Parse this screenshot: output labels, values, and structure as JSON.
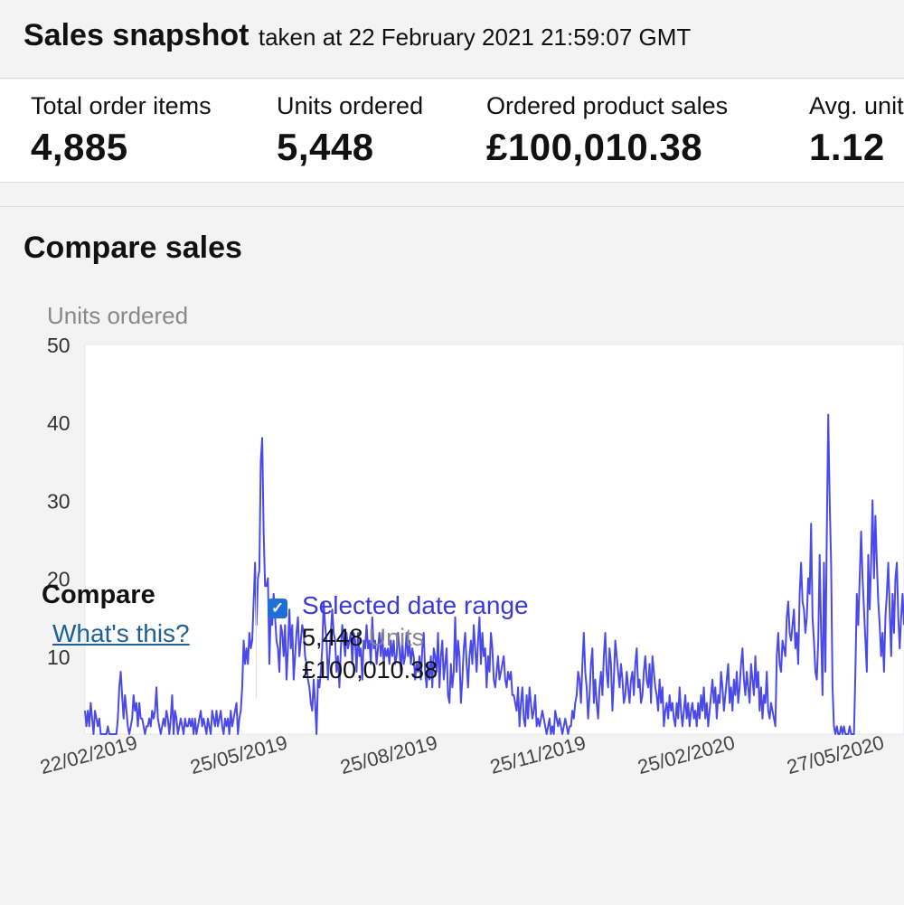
{
  "header": {
    "title": "Sales snapshot",
    "subtitle": "taken at 22 February 2021 21:59:07 GMT"
  },
  "metrics": [
    {
      "label": "Total order items",
      "value": "4,885"
    },
    {
      "label": "Units ordered",
      "value": "5,448"
    },
    {
      "label": "Ordered product sales",
      "value": "£100,010.38"
    },
    {
      "label": "Avg. units/order item",
      "value": "1.12"
    }
  ],
  "compare_sales": {
    "title": "Compare sales",
    "compare_label": "Compare",
    "whats_this": "What's this?",
    "range": {
      "label": "Selected date range",
      "checked": true,
      "units_value": "5,448",
      "units_label": "Units",
      "sales": "£100,010.38"
    }
  },
  "colors": {
    "line": "#4a4aea",
    "link": "#1f5f95",
    "checkbox": "#1e6fd6"
  },
  "chart_data": {
    "type": "line",
    "ylabel": "Units ordered",
    "ylim": [
      0,
      50
    ],
    "yticks": [
      "50",
      "40",
      "30",
      "20",
      "10"
    ],
    "xtick_labels": [
      "22/02/2019",
      "25/05/2019",
      "25/08/2019",
      "25/11/2019",
      "25/02/2020",
      "27/05/2020"
    ],
    "series": [
      {
        "values": [
          3,
          1,
          3,
          1,
          4,
          2,
          0,
          3,
          2,
          1,
          2,
          0,
          0,
          0,
          0,
          0,
          1,
          0,
          0,
          0,
          0,
          0,
          0,
          2,
          6,
          8,
          5,
          2,
          5,
          3,
          1,
          0,
          1,
          2,
          5,
          3,
          4,
          1,
          4,
          2,
          2,
          1,
          0,
          1,
          1,
          2,
          1,
          3,
          2,
          3,
          6,
          2,
          1,
          0,
          1,
          2,
          1,
          3,
          2,
          0,
          2,
          5,
          0,
          3,
          2,
          0,
          1,
          2,
          1,
          0,
          2,
          1,
          1,
          2,
          1,
          2,
          0,
          2,
          0,
          1,
          2,
          3,
          1,
          2,
          1,
          0,
          2,
          1,
          0,
          3,
          2,
          1,
          3,
          1,
          2,
          3,
          1,
          0,
          2,
          1,
          2,
          0,
          3,
          1,
          2,
          3,
          4,
          0,
          2,
          3,
          6,
          12,
          9,
          11,
          9,
          13,
          11,
          12,
          17,
          22,
          14,
          20,
          21,
          35,
          38,
          26,
          19,
          19,
          20,
          9,
          16,
          14,
          18,
          15,
          12,
          11,
          8,
          14,
          13,
          10,
          14,
          7,
          11,
          16,
          11,
          14,
          7,
          10,
          13,
          15,
          10,
          12,
          14,
          13,
          10,
          9,
          7,
          6,
          4,
          3,
          7,
          4,
          0,
          7,
          6,
          8,
          11,
          17,
          14,
          12,
          7,
          10,
          13,
          16,
          13,
          12,
          8,
          10,
          6,
          11,
          14,
          12,
          10,
          13,
          11,
          12,
          13,
          9,
          13,
          12,
          8,
          13,
          10,
          11,
          7,
          12,
          11,
          14,
          11,
          12,
          9,
          15,
          11,
          12,
          9,
          11,
          13,
          10,
          13,
          9,
          11,
          10,
          11,
          9,
          12,
          10,
          12,
          9,
          10,
          13,
          11,
          8,
          12,
          9,
          10,
          13,
          10,
          12,
          9,
          11,
          10,
          7,
          9,
          8,
          10,
          7,
          11,
          13,
          8,
          6,
          9,
          7,
          10,
          6,
          11,
          10,
          8,
          13,
          6,
          10,
          12,
          7,
          9,
          11,
          5,
          4,
          9,
          6,
          8,
          15,
          8,
          12,
          10,
          4,
          7,
          11,
          13,
          9,
          6,
          10,
          12,
          9,
          14,
          11,
          8,
          12,
          15,
          9,
          13,
          10,
          11,
          6,
          10,
          8,
          13,
          11,
          7,
          6,
          8,
          10,
          7,
          8,
          9,
          10,
          7,
          6,
          8,
          7,
          8,
          5,
          5,
          4,
          3,
          6,
          1,
          4,
          6,
          2,
          1,
          5,
          2,
          6,
          4,
          2,
          3,
          5,
          1,
          2,
          1,
          2,
          3,
          2,
          1,
          0,
          1,
          2,
          0,
          1,
          0,
          3,
          2,
          1,
          2,
          1,
          0,
          1,
          2,
          1,
          0,
          1,
          1,
          3,
          2,
          4,
          5,
          8,
          7,
          4,
          9,
          13,
          8,
          6,
          2,
          5,
          9,
          11,
          4,
          7,
          4,
          2,
          6,
          8,
          5,
          10,
          13,
          8,
          6,
          11,
          9,
          3,
          7,
          12,
          10,
          8,
          6,
          9,
          7,
          4,
          5,
          8,
          6,
          4,
          7,
          8,
          5,
          9,
          11,
          6,
          7,
          4,
          5,
          8,
          10,
          7,
          6,
          9,
          4,
          10,
          8,
          6,
          5,
          3,
          7,
          4,
          6,
          1,
          3,
          4,
          2,
          5,
          3,
          4,
          2,
          1,
          4,
          2,
          6,
          3,
          1,
          3,
          5,
          2,
          4,
          1,
          3,
          4,
          2,
          3,
          1,
          4,
          2,
          5,
          3,
          6,
          2,
          4,
          1,
          3,
          5,
          7,
          4,
          6,
          2,
          5,
          4,
          8,
          6,
          3,
          5,
          7,
          9,
          4,
          6,
          3,
          7,
          5,
          8,
          4,
          6,
          9,
          11,
          7,
          5,
          8,
          6,
          4,
          9,
          7,
          5,
          10,
          6,
          8,
          3,
          6,
          2,
          5,
          4,
          8,
          3,
          2,
          4,
          3,
          2,
          1,
          10,
          13,
          9,
          8,
          12,
          11,
          10,
          15,
          17,
          13,
          12,
          14,
          16,
          11,
          13,
          9,
          18,
          22,
          17,
          16,
          13,
          15,
          20,
          18,
          27,
          15,
          12,
          8,
          7,
          12,
          23,
          13,
          5,
          22,
          8,
          26,
          41,
          30,
          22,
          6,
          1,
          0,
          1,
          0,
          0,
          1,
          0,
          1,
          0,
          0,
          0,
          1,
          0,
          0,
          0,
          8,
          18,
          14,
          20,
          26,
          20,
          16,
          12,
          8,
          23,
          16,
          22,
          30,
          20,
          28,
          22,
          17,
          14,
          10,
          13,
          8,
          15,
          18,
          22,
          16,
          10,
          18,
          13,
          20,
          22,
          15,
          11,
          15,
          18,
          14
        ]
      }
    ]
  }
}
